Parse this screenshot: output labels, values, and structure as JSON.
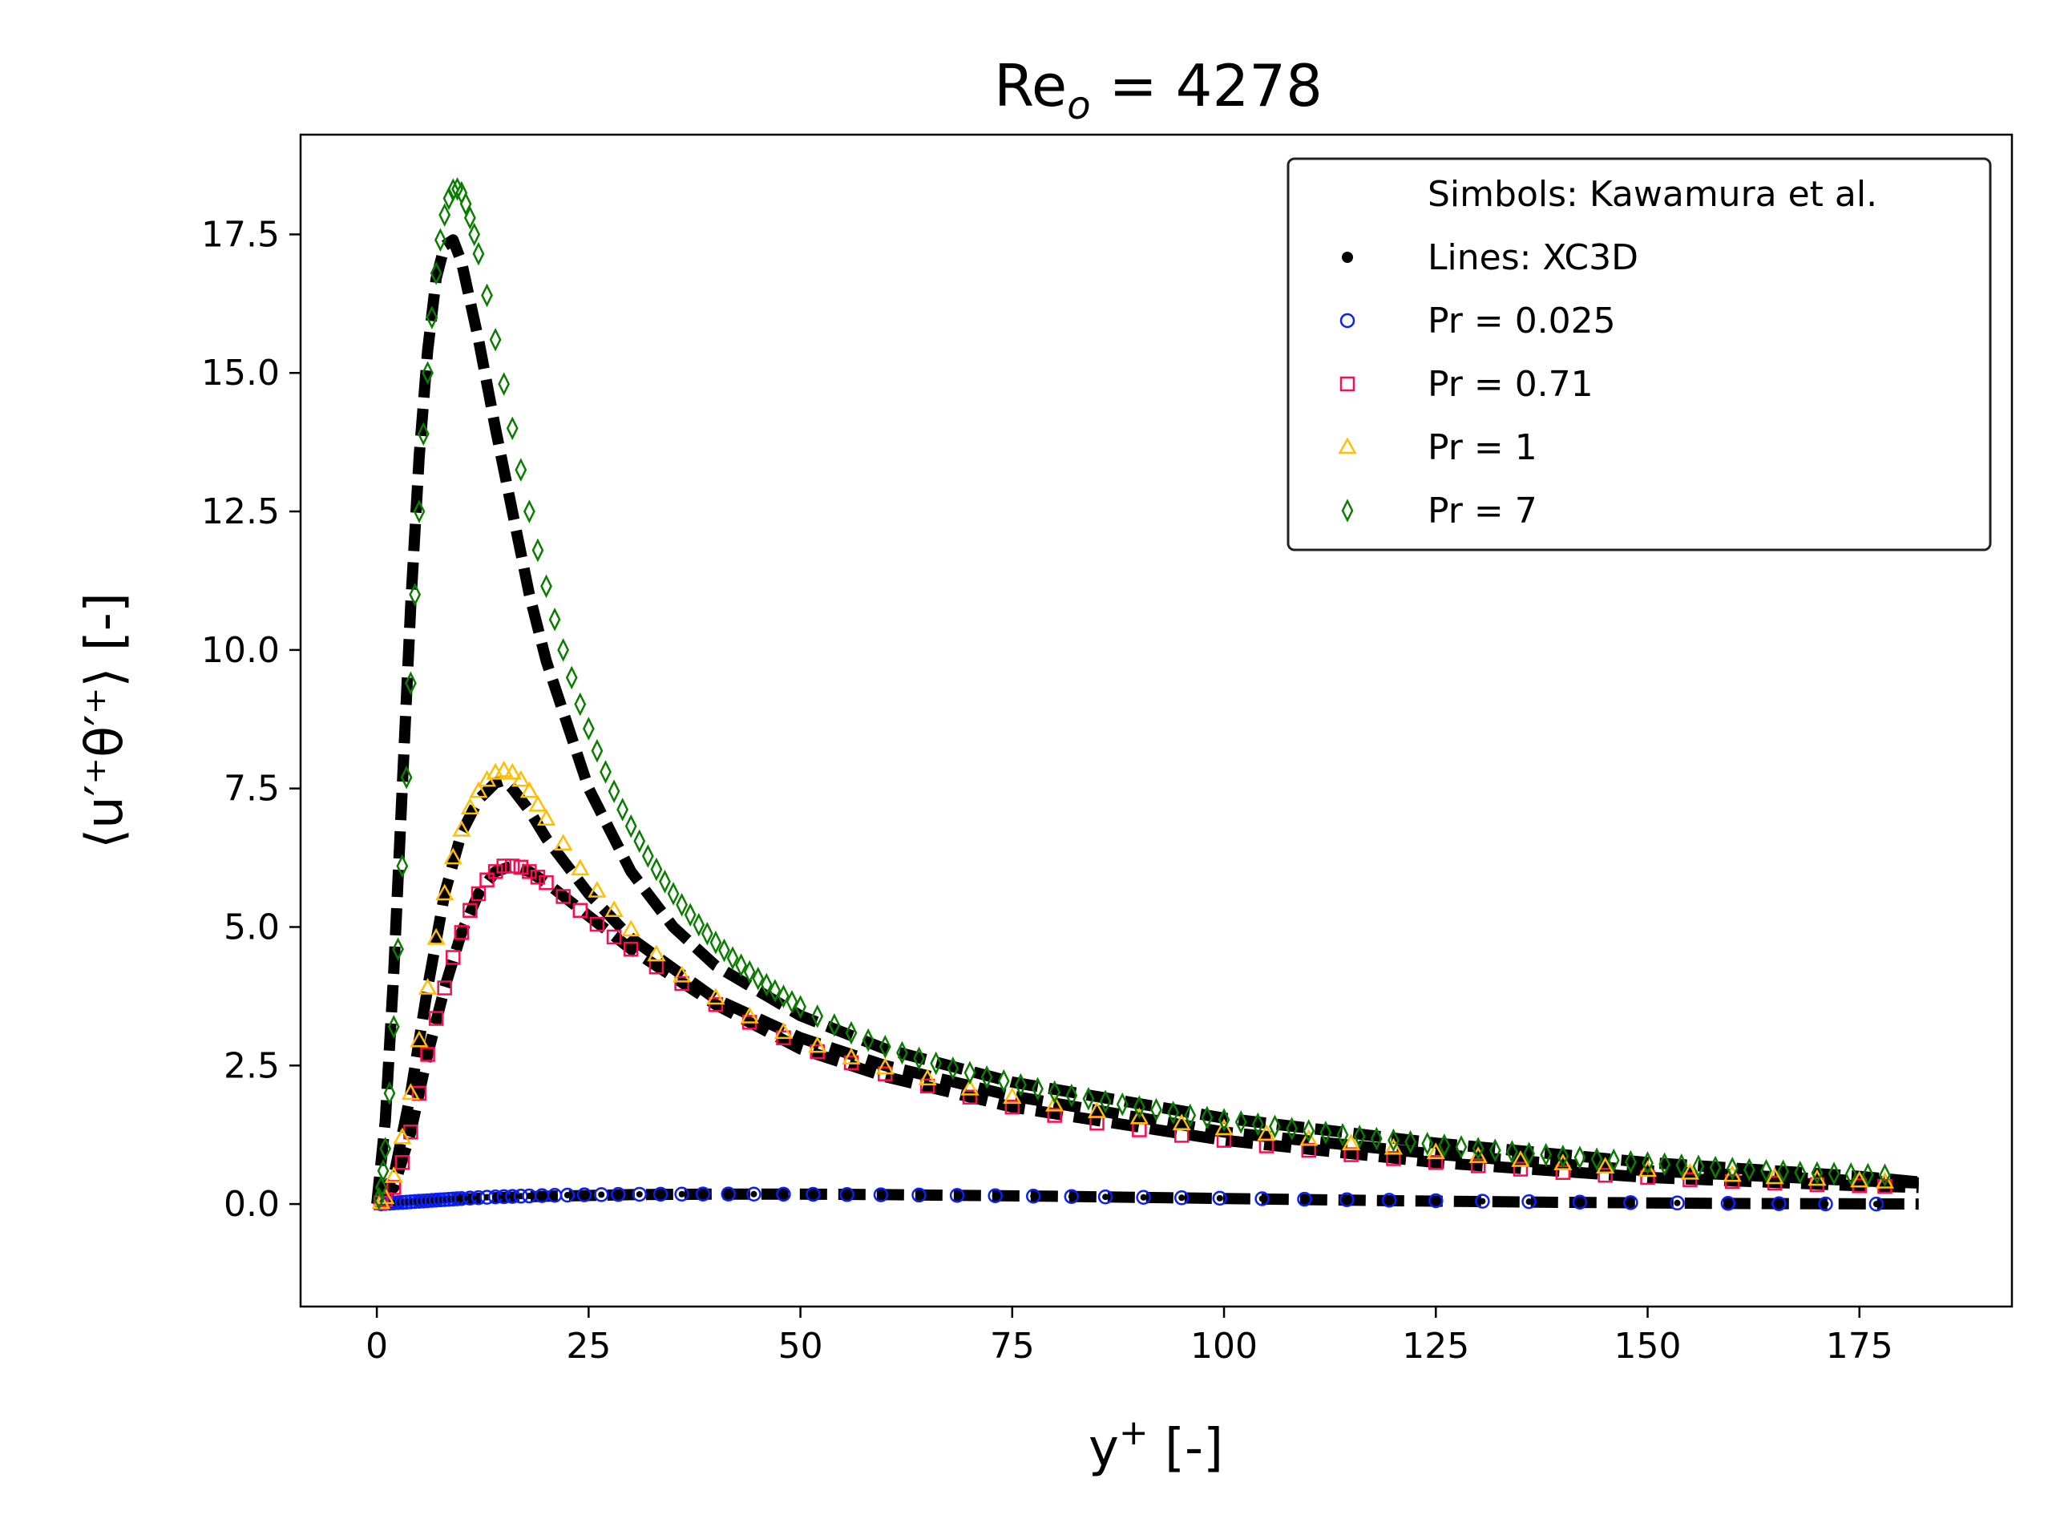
{
  "chart_data": {
    "type": "scatter",
    "title_main": "Re",
    "title_sub": "o",
    "title_rest": " = 4278",
    "xlabel_main": "y",
    "xlabel_sup": "+",
    "xlabel_rest": " [-]",
    "ylabel": "⟨u′⁺θ′⁺⟩ [-]",
    "xlim": [
      -9,
      193
    ],
    "ylim": [
      -1.85,
      19.3
    ],
    "xticks": [
      0,
      25,
      50,
      75,
      100,
      125,
      150,
      175
    ],
    "yticks": [
      0.0,
      2.5,
      5.0,
      7.5,
      10.0,
      12.5,
      15.0,
      17.5
    ],
    "grid": false,
    "legend_position": "top-right",
    "legend": [
      {
        "label": "Simbols: Kawamura et al.",
        "marker": "none",
        "color": "#000000"
      },
      {
        "label": "Lines: XC3D",
        "marker": "dot",
        "color": "#000000"
      },
      {
        "label": "Pr = 0.025",
        "marker": "circle",
        "color": "#0a1eff"
      },
      {
        "label": "Pr = 0.71",
        "marker": "square",
        "color": "#ff0a50"
      },
      {
        "label": "Pr = 1",
        "marker": "triangle",
        "color": "#ffbe00"
      },
      {
        "label": "Pr = 7",
        "marker": "diamond",
        "color": "#0a7d00"
      }
    ],
    "lines": [
      {
        "name": "Pr = 0.025",
        "x": [
          0,
          2,
          5,
          10,
          15,
          20,
          30,
          40,
          50,
          60,
          80,
          100,
          120,
          140,
          160,
          182
        ],
        "y": [
          0,
          0.02,
          0.05,
          0.09,
          0.12,
          0.14,
          0.17,
          0.18,
          0.18,
          0.17,
          0.14,
          0.1,
          0.06,
          0.03,
          0.01,
          0.0
        ]
      },
      {
        "name": "Pr = 0.71",
        "x": [
          0,
          2,
          4,
          6,
          8,
          10,
          12,
          14,
          16,
          18,
          20,
          25,
          30,
          40,
          50,
          60,
          75,
          100,
          125,
          150,
          175,
          182
        ],
        "y": [
          0,
          0.3,
          1.3,
          2.7,
          3.9,
          4.9,
          5.6,
          6.0,
          6.1,
          6.0,
          5.8,
          5.2,
          4.6,
          3.6,
          2.8,
          2.3,
          1.75,
          1.15,
          0.75,
          0.48,
          0.33,
          0.3
        ]
      },
      {
        "name": "Pr = 1",
        "x": [
          0,
          2,
          4,
          6,
          8,
          10,
          12,
          14,
          15,
          16,
          18,
          20,
          25,
          30,
          40,
          50,
          60,
          75,
          100,
          125,
          150,
          175,
          182
        ],
        "y": [
          0,
          0.5,
          2.0,
          3.9,
          5.6,
          6.7,
          7.3,
          7.6,
          7.65,
          7.5,
          7.1,
          6.6,
          5.6,
          4.8,
          3.7,
          3.0,
          2.5,
          1.95,
          1.3,
          0.9,
          0.6,
          0.42,
          0.38
        ]
      },
      {
        "name": "Pr = 7",
        "x": [
          0,
          1,
          2,
          3,
          4,
          5,
          6,
          7,
          8,
          9,
          10,
          11,
          12,
          14,
          16,
          18,
          20,
          25,
          30,
          35,
          40,
          50,
          60,
          75,
          100,
          125,
          150,
          175,
          182
        ],
        "y": [
          0,
          1.5,
          4.2,
          7.5,
          10.8,
          13.5,
          15.4,
          16.7,
          17.3,
          17.4,
          17.0,
          16.3,
          15.6,
          14.0,
          12.5,
          11.0,
          9.8,
          7.5,
          6.0,
          5.0,
          4.3,
          3.4,
          2.8,
          2.2,
          1.55,
          1.1,
          0.75,
          0.5,
          0.4
        ]
      }
    ],
    "series": [
      {
        "name": "Pr = 0.025",
        "marker": "circle",
        "color": "#0a1eff",
        "x": [
          0.5,
          1,
          1.5,
          2,
          2.5,
          3,
          3.5,
          4,
          4.5,
          5,
          5.5,
          6,
          6.5,
          7,
          7.5,
          8,
          8.5,
          9,
          9.5,
          10,
          11,
          12,
          13,
          14,
          15,
          16,
          17,
          18,
          19.5,
          21,
          22.5,
          24.5,
          26.5,
          28.5,
          31,
          33.5,
          36,
          38.5,
          41.5,
          44.5,
          48,
          51.5,
          55.5,
          59.5,
          64,
          68.5,
          73,
          77.5,
          82,
          86,
          90.5,
          95,
          99.5,
          104.5,
          109.5,
          114.5,
          119.5,
          125,
          130.5,
          136,
          142,
          148,
          153.5,
          159.5,
          165.5,
          171,
          177
        ],
        "y": [
          0.005,
          0.01,
          0.015,
          0.02,
          0.025,
          0.03,
          0.035,
          0.04,
          0.045,
          0.05,
          0.055,
          0.06,
          0.065,
          0.07,
          0.075,
          0.08,
          0.085,
          0.09,
          0.095,
          0.1,
          0.108,
          0.115,
          0.122,
          0.128,
          0.133,
          0.138,
          0.142,
          0.146,
          0.152,
          0.157,
          0.161,
          0.166,
          0.17,
          0.173,
          0.176,
          0.178,
          0.179,
          0.18,
          0.18,
          0.179,
          0.177,
          0.175,
          0.171,
          0.167,
          0.162,
          0.156,
          0.15,
          0.143,
          0.136,
          0.129,
          0.121,
          0.113,
          0.105,
          0.096,
          0.087,
          0.078,
          0.069,
          0.06,
          0.051,
          0.043,
          0.034,
          0.026,
          0.019,
          0.012,
          0.006,
          0.002,
          0.0
        ]
      },
      {
        "name": "Pr = 0.71",
        "marker": "square",
        "color": "#ff0a50",
        "x": [
          0.5,
          1,
          2,
          3,
          4,
          5,
          6,
          7,
          8,
          9,
          10,
          11,
          12,
          13,
          14,
          15,
          16,
          17,
          18,
          19,
          20,
          22,
          24,
          26,
          28,
          30,
          33,
          36,
          40,
          44,
          48,
          52,
          56,
          60,
          65,
          70,
          75,
          80,
          85,
          90,
          95,
          100,
          105,
          110,
          115,
          120,
          125,
          130,
          135,
          140,
          145,
          150,
          155,
          160,
          165,
          170,
          175,
          178
        ],
        "y": [
          0.02,
          0.08,
          0.3,
          0.75,
          1.3,
          2.0,
          2.7,
          3.35,
          3.9,
          4.45,
          4.9,
          5.3,
          5.6,
          5.85,
          6.0,
          6.1,
          6.1,
          6.08,
          6.0,
          5.9,
          5.8,
          5.55,
          5.3,
          5.05,
          4.82,
          4.6,
          4.28,
          3.98,
          3.6,
          3.28,
          3.0,
          2.75,
          2.55,
          2.35,
          2.13,
          1.93,
          1.75,
          1.6,
          1.46,
          1.34,
          1.24,
          1.15,
          1.05,
          0.97,
          0.89,
          0.82,
          0.75,
          0.69,
          0.63,
          0.57,
          0.52,
          0.48,
          0.44,
          0.41,
          0.38,
          0.35,
          0.33,
          0.32
        ]
      },
      {
        "name": "Pr = 1",
        "marker": "triangle",
        "color": "#ffbe00",
        "x": [
          0.5,
          1,
          2,
          3,
          4,
          5,
          6,
          7,
          8,
          9,
          10,
          11,
          12,
          13,
          14,
          15,
          16,
          17,
          18,
          19,
          20,
          22,
          24,
          26,
          28,
          30,
          33,
          36,
          40,
          44,
          48,
          52,
          56,
          60,
          65,
          70,
          75,
          80,
          85,
          90,
          95,
          100,
          105,
          110,
          115,
          120,
          125,
          130,
          135,
          140,
          145,
          150,
          155,
          160,
          165,
          170,
          175,
          178
        ],
        "y": [
          0.03,
          0.12,
          0.5,
          1.2,
          2.0,
          2.95,
          3.9,
          4.8,
          5.6,
          6.25,
          6.75,
          7.15,
          7.45,
          7.65,
          7.78,
          7.82,
          7.78,
          7.65,
          7.45,
          7.2,
          6.95,
          6.5,
          6.05,
          5.65,
          5.3,
          4.95,
          4.5,
          4.12,
          3.72,
          3.38,
          3.1,
          2.85,
          2.64,
          2.46,
          2.26,
          2.08,
          1.93,
          1.79,
          1.67,
          1.56,
          1.45,
          1.36,
          1.26,
          1.17,
          1.09,
          1.01,
          0.93,
          0.86,
          0.79,
          0.73,
          0.67,
          0.61,
          0.56,
          0.52,
          0.48,
          0.45,
          0.42,
          0.4
        ]
      },
      {
        "name": "Pr = 7",
        "marker": "diamond",
        "color": "#0a7d00",
        "x": [
          0.25,
          0.5,
          0.75,
          1,
          1.5,
          2,
          2.5,
          3,
          3.5,
          4,
          4.5,
          5,
          5.5,
          6,
          6.5,
          7,
          7.5,
          8,
          8.5,
          9,
          9.5,
          10,
          10.5,
          11,
          11.5,
          12,
          13,
          14,
          15,
          16,
          17,
          18,
          19,
          20,
          21,
          22,
          23,
          24,
          25,
          26,
          27,
          28,
          29,
          30,
          31,
          32,
          33,
          34,
          35,
          36,
          37,
          38,
          39,
          40,
          41,
          42,
          43,
          44,
          45,
          46,
          47,
          48,
          49,
          50,
          52,
          54,
          56,
          58,
          60,
          62,
          64,
          66,
          68,
          70,
          72,
          74,
          76,
          78,
          80,
          82,
          84,
          86,
          88,
          90,
          92,
          94,
          96,
          98,
          100,
          102,
          104,
          106,
          108,
          110,
          112,
          114,
          116,
          118,
          120,
          122,
          124,
          126,
          128,
          130,
          132,
          134,
          136,
          138,
          140,
          142,
          144,
          146,
          148,
          150,
          152,
          154,
          156,
          158,
          160,
          162,
          164,
          166,
          168,
          170,
          172,
          174,
          176,
          178
        ],
        "y": [
          0.1,
          0.3,
          0.6,
          1.0,
          2.0,
          3.2,
          4.6,
          6.1,
          7.7,
          9.4,
          11.0,
          12.5,
          13.9,
          15.0,
          16.0,
          16.8,
          17.4,
          17.85,
          18.15,
          18.3,
          18.32,
          18.25,
          18.05,
          17.8,
          17.5,
          17.15,
          16.4,
          15.6,
          14.8,
          14.0,
          13.25,
          12.5,
          11.8,
          11.15,
          10.55,
          10.0,
          9.5,
          9.02,
          8.58,
          8.18,
          7.8,
          7.45,
          7.12,
          6.82,
          6.55,
          6.28,
          6.04,
          5.82,
          5.6,
          5.4,
          5.22,
          5.04,
          4.88,
          4.72,
          4.58,
          4.44,
          4.31,
          4.19,
          4.07,
          3.96,
          3.85,
          3.75,
          3.65,
          3.56,
          3.39,
          3.23,
          3.09,
          2.96,
          2.84,
          2.73,
          2.63,
          2.54,
          2.45,
          2.37,
          2.29,
          2.22,
          2.15,
          2.08,
          2.02,
          1.96,
          1.9,
          1.85,
          1.8,
          1.75,
          1.7,
          1.65,
          1.6,
          1.56,
          1.52,
          1.48,
          1.44,
          1.4,
          1.36,
          1.32,
          1.29,
          1.25,
          1.22,
          1.18,
          1.15,
          1.12,
          1.09,
          1.06,
          1.03,
          1.0,
          0.97,
          0.94,
          0.91,
          0.89,
          0.86,
          0.84,
          0.81,
          0.79,
          0.76,
          0.74,
          0.72,
          0.7,
          0.68,
          0.66,
          0.64,
          0.62,
          0.6,
          0.59,
          0.57,
          0.56,
          0.55,
          0.54,
          0.53,
          0.52
        ]
      }
    ]
  }
}
